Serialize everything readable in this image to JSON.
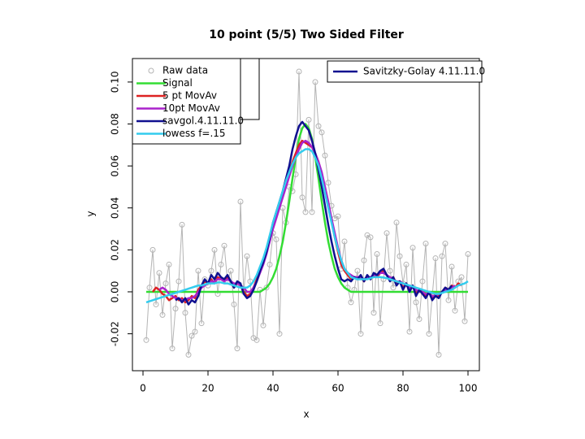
{
  "chart_data": {
    "type": "line",
    "title": "10 point (5/5) Two Sided Filter",
    "x_label": "x",
    "y_label": "y",
    "xlim": [
      -3.25,
      103.5
    ],
    "ylim": [
      -0.0376,
      0.1112
    ],
    "xticks": [
      0,
      20,
      40,
      60,
      80,
      100
    ],
    "yticks": [
      -0.02,
      {
        "value": 0,
        "label": "0.00"
      },
      0.02,
      0.04,
      0.06,
      0.08,
      {
        "value": 0.1,
        "label": "0.10"
      }
    ],
    "x": [
      1,
      2,
      3,
      4,
      5,
      6,
      7,
      8,
      9,
      10,
      11,
      12,
      13,
      14,
      15,
      16,
      17,
      18,
      19,
      20,
      21,
      22,
      23,
      24,
      25,
      26,
      27,
      28,
      29,
      30,
      31,
      32,
      33,
      34,
      35,
      36,
      37,
      38,
      39,
      40,
      41,
      42,
      43,
      44,
      45,
      46,
      47,
      48,
      49,
      50,
      51,
      52,
      53,
      54,
      55,
      56,
      57,
      58,
      59,
      60,
      61,
      62,
      63,
      64,
      65,
      66,
      67,
      68,
      69,
      70,
      71,
      72,
      73,
      74,
      75,
      76,
      77,
      78,
      79,
      80,
      81,
      82,
      83,
      84,
      85,
      86,
      87,
      88,
      89,
      90,
      91,
      92,
      93,
      94,
      95,
      96,
      97,
      98,
      99,
      100
    ],
    "series": [
      {
        "name": "Raw data",
        "color": "#b4b4b4",
        "marker": "circle",
        "values": [
          -0.023,
          0.002,
          0.02,
          -0.006,
          0.009,
          -0.011,
          0.004,
          0.013,
          -0.027,
          -0.008,
          0.005,
          0.032,
          -0.01,
          -0.03,
          -0.021,
          -0.019,
          0.01,
          -0.015,
          0.006,
          0.003,
          0.01,
          0.02,
          -0.001,
          0.013,
          0.022,
          0.005,
          0.01,
          -0.006,
          -0.027,
          0.043,
          0.0,
          0.017,
          0.005,
          -0.022,
          -0.023,
          0.001,
          -0.016,
          0.002,
          0.013,
          0.028,
          0.025,
          -0.02,
          0.04,
          0.033,
          0.05,
          0.048,
          0.056,
          0.105,
          0.045,
          0.038,
          0.082,
          0.038,
          0.1,
          0.079,
          0.076,
          0.065,
          0.052,
          0.041,
          0.035,
          0.036,
          0.011,
          0.024,
          0.002,
          -0.005,
          0.001,
          0.01,
          -0.02,
          0.015,
          0.027,
          0.026,
          -0.01,
          0.018,
          -0.015,
          0.006,
          0.028,
          0.01,
          0.002,
          0.033,
          0.017,
          0.004,
          0.013,
          -0.019,
          0.021,
          -0.005,
          -0.013,
          0.005,
          0.023,
          -0.02,
          -0.002,
          0.016,
          -0.03,
          0.017,
          0.023,
          -0.004,
          0.012,
          -0.009,
          0.005,
          0.007,
          -0.014,
          0.018
        ]
      },
      {
        "name": "Signal",
        "color": "#33dd33",
        "values": [
          0,
          0,
          0,
          0,
          0,
          0,
          0,
          0,
          0,
          0,
          0,
          0,
          0,
          0,
          0,
          0,
          0,
          0,
          0,
          0,
          0,
          0,
          0,
          0,
          0,
          0,
          0,
          0,
          0,
          0,
          0,
          0,
          0,
          0,
          0,
          0,
          0.001,
          0.002,
          0.004,
          0.007,
          0.011,
          0.017,
          0.024,
          0.033,
          0.043,
          0.054,
          0.064,
          0.073,
          0.078,
          0.08,
          0.078,
          0.073,
          0.064,
          0.054,
          0.043,
          0.033,
          0.024,
          0.017,
          0.011,
          0.007,
          0.004,
          0.002,
          0.001,
          0,
          0,
          0,
          0,
          0,
          0,
          0,
          0,
          0,
          0,
          0,
          0,
          0,
          0,
          0,
          0,
          0,
          0,
          0,
          0,
          0,
          0,
          0,
          0,
          0,
          0,
          0,
          0,
          0,
          0,
          0,
          0,
          0,
          0,
          0,
          0,
          0
        ]
      },
      {
        "name": "5 pt MovAv",
        "color": "#dd2222",
        "values": [
          null,
          null,
          0.0,
          0.002,
          0.001,
          -0.001,
          -0.002,
          -0.004,
          -0.003,
          -0.002,
          -0.004,
          -0.003,
          -0.005,
          -0.004,
          -0.002,
          -0.003,
          0.001,
          0.003,
          0.005,
          0.004,
          0.006,
          0.004,
          0.007,
          0.006,
          0.005,
          0.007,
          0.005,
          0.002,
          0.004,
          0.003,
          0.0,
          -0.002,
          -0.001,
          0.002,
          0.006,
          0.01,
          0.014,
          0.02,
          0.026,
          0.032,
          0.036,
          0.041,
          0.046,
          0.052,
          0.057,
          0.062,
          0.066,
          0.07,
          0.072,
          0.071,
          0.07,
          0.069,
          0.066,
          0.062,
          0.056,
          0.049,
          0.042,
          0.034,
          0.026,
          0.019,
          0.013,
          0.01,
          0.008,
          0.006,
          0.007,
          0.006,
          0.007,
          0.005,
          0.007,
          0.006,
          0.008,
          0.007,
          0.009,
          0.01,
          0.008,
          0.006,
          0.007,
          0.004,
          0.005,
          0.002,
          0.004,
          0.001,
          0.003,
          -0.001,
          0.001,
          0.0,
          -0.002,
          0.0,
          -0.003,
          -0.001,
          -0.002,
          0.0,
          0.002,
          0.001,
          0.003,
          0.002,
          0.004,
          0.003,
          null,
          null
        ]
      },
      {
        "name": "10pt MovAv",
        "color": "#aa22cc",
        "values": [
          null,
          null,
          null,
          null,
          0.001,
          0.002,
          0.001,
          -0.001,
          -0.002,
          -0.003,
          -0.003,
          -0.004,
          -0.004,
          -0.003,
          -0.003,
          -0.002,
          0.0,
          0.002,
          0.003,
          0.004,
          0.005,
          0.005,
          0.006,
          0.006,
          0.005,
          0.006,
          0.005,
          0.004,
          0.004,
          0.003,
          0.002,
          0.0,
          0.0,
          0.002,
          0.005,
          0.009,
          0.013,
          0.018,
          0.024,
          0.03,
          0.035,
          0.04,
          0.045,
          0.05,
          0.055,
          0.06,
          0.064,
          0.068,
          0.071,
          0.072,
          0.071,
          0.069,
          0.066,
          0.062,
          0.057,
          0.05,
          0.043,
          0.035,
          0.028,
          0.021,
          0.015,
          0.011,
          0.009,
          0.008,
          0.007,
          0.007,
          0.007,
          0.006,
          0.007,
          0.007,
          0.008,
          0.008,
          0.009,
          0.009,
          0.008,
          0.007,
          0.006,
          0.005,
          0.005,
          0.004,
          0.003,
          0.002,
          0.002,
          0.001,
          0.0,
          0.0,
          -0.001,
          -0.001,
          -0.002,
          -0.002,
          -0.001,
          0.0,
          0.001,
          0.001,
          0.002,
          0.003,
          null,
          null,
          null,
          null
        ]
      },
      {
        "name": "savgol.4.11.11.0",
        "color": "#101090",
        "values": [
          null,
          null,
          null,
          null,
          null,
          null,
          null,
          null,
          null,
          -0.004,
          -0.003,
          -0.005,
          -0.003,
          -0.006,
          -0.004,
          -0.005,
          -0.002,
          0.003,
          0.006,
          0.004,
          0.008,
          0.006,
          0.009,
          0.007,
          0.006,
          0.008,
          0.005,
          0.002,
          0.005,
          0.004,
          -0.001,
          -0.003,
          -0.002,
          0.001,
          0.005,
          0.01,
          0.014,
          0.019,
          0.026,
          0.033,
          0.038,
          0.043,
          0.048,
          0.054,
          0.06,
          0.068,
          0.074,
          0.079,
          0.081,
          0.079,
          0.077,
          0.072,
          0.066,
          0.058,
          0.05,
          0.041,
          0.032,
          0.024,
          0.017,
          0.011,
          0.006,
          0.005,
          0.006,
          0.005,
          0.007,
          0.006,
          0.008,
          0.005,
          0.008,
          0.006,
          0.009,
          0.008,
          0.01,
          0.011,
          0.008,
          0.005,
          0.007,
          0.003,
          0.005,
          0.001,
          0.004,
          0.0,
          0.003,
          -0.002,
          0.001,
          -0.001,
          -0.003,
          0.0,
          -0.004,
          -0.002,
          -0.003,
          0.0,
          0.002,
          0.001,
          0.003,
          null,
          null,
          null,
          null,
          null
        ]
      },
      {
        "name": "lowess f=.15",
        "color": "#33ccee",
        "values": [
          -0.005,
          -0.0045,
          -0.004,
          -0.0035,
          -0.003,
          -0.0025,
          -0.002,
          -0.0015,
          -0.001,
          -0.0005,
          0,
          0.0005,
          0.001,
          0.0015,
          0.002,
          0.0025,
          0.003,
          0.003,
          0.0035,
          0.004,
          0.004,
          0.004,
          0.0045,
          0.0045,
          0.004,
          0.004,
          0.0035,
          0.003,
          0.0025,
          0.002,
          0.002,
          0.002,
          0.003,
          0.005,
          0.008,
          0.012,
          0.016,
          0.021,
          0.027,
          0.033,
          0.038,
          0.043,
          0.048,
          0.053,
          0.057,
          0.061,
          0.064,
          0.066,
          0.067,
          0.068,
          0.068,
          0.067,
          0.064,
          0.06,
          0.054,
          0.047,
          0.04,
          0.033,
          0.026,
          0.02,
          0.015,
          0.011,
          0.009,
          0.007,
          0.0065,
          0.006,
          0.006,
          0.006,
          0.006,
          0.0065,
          0.007,
          0.007,
          0.007,
          0.0068,
          0.0065,
          0.006,
          0.0055,
          0.005,
          0.0045,
          0.004,
          0.0035,
          0.003,
          0.0025,
          0.002,
          0.0015,
          0.001,
          0.0005,
          0,
          -0.0005,
          -0.001,
          -0.001,
          -0.0005,
          0,
          0.0005,
          0.001,
          0.002,
          0.003,
          0.0035,
          0.004,
          0.005
        ]
      }
    ],
    "secondary_legend": {
      "label": "Savitzky-Golay 4.11.11.0",
      "color": "#101090"
    }
  }
}
